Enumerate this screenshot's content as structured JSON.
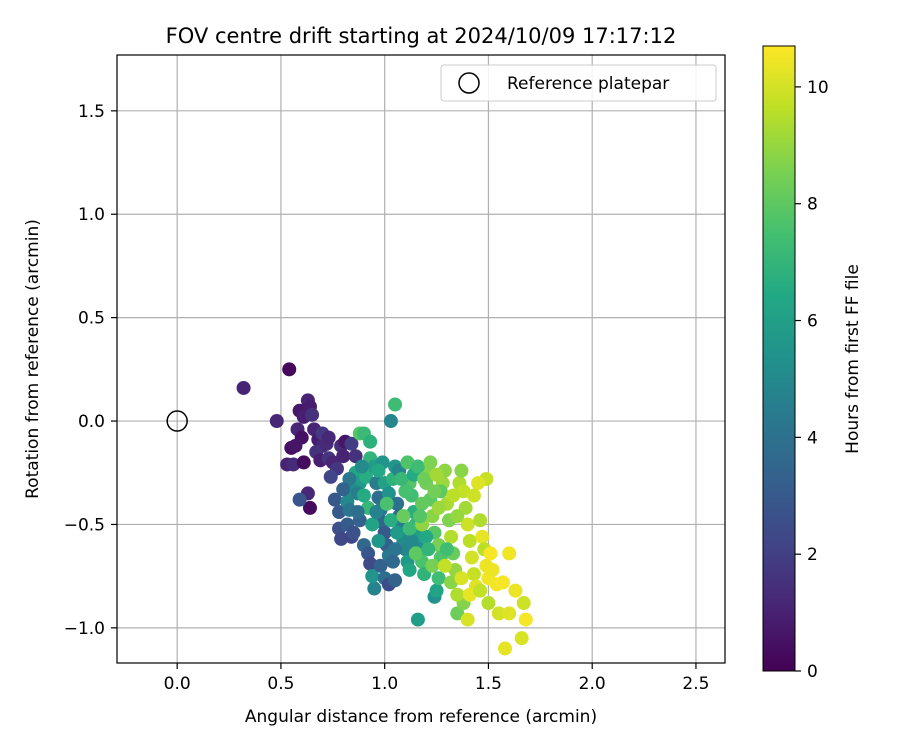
{
  "chart_data": {
    "type": "scatter",
    "title": "FOV centre drift starting at 2024/10/09 17:17:12",
    "xlabel": "Angular distance from reference (arcmin)",
    "ylabel": "Rotation from reference (arcmin)",
    "xlim": [
      -0.29,
      2.64
    ],
    "ylim": [
      -1.17,
      1.77
    ],
    "xticks": [
      0.0,
      0.5,
      1.0,
      1.5,
      2.0,
      2.5
    ],
    "xtick_labels": [
      "0.0",
      "0.5",
      "1.0",
      "1.5",
      "2.0",
      "2.5"
    ],
    "yticks": [
      -1.0,
      -0.5,
      0.0,
      0.5,
      1.0,
      1.5
    ],
    "ytick_labels": [
      "−1.0",
      "−0.5",
      "0.0",
      "0.5",
      "1.0",
      "1.5"
    ],
    "grid": true,
    "legend": {
      "placement": "top-right",
      "entries": [
        "Reference platepar"
      ]
    },
    "reference_point": {
      "label": "Reference platepar",
      "x": 0.0,
      "y": 0.0
    },
    "colorbar": {
      "label": "Hours from first FF file",
      "colormap": "viridis",
      "range": [
        0,
        10.7
      ],
      "ticks": [
        0,
        2,
        4,
        6,
        8,
        10
      ],
      "tick_labels": [
        "0",
        "2",
        "4",
        "6",
        "8",
        "10"
      ]
    },
    "series": [
      {
        "points": [
          {
            "x": 0.32,
            "y": 0.16,
            "c": 1.0
          },
          {
            "x": 0.54,
            "y": 0.25,
            "c": 0.2
          },
          {
            "x": 0.48,
            "y": 0.0,
            "c": 1.2
          },
          {
            "x": 0.59,
            "y": 0.05,
            "c": 0.7
          },
          {
            "x": 0.63,
            "y": 0.1,
            "c": 1.0
          },
          {
            "x": 0.64,
            "y": 0.07,
            "c": 0.8
          },
          {
            "x": 0.61,
            "y": 0.02,
            "c": 0.9
          },
          {
            "x": 0.58,
            "y": -0.04,
            "c": 1.1
          },
          {
            "x": 0.6,
            "y": -0.08,
            "c": 0.5
          },
          {
            "x": 0.55,
            "y": -0.13,
            "c": 0.4
          },
          {
            "x": 0.57,
            "y": -0.12,
            "c": 0.6
          },
          {
            "x": 0.53,
            "y": -0.21,
            "c": 1.0
          },
          {
            "x": 0.56,
            "y": -0.21,
            "c": 1.3
          },
          {
            "x": 0.61,
            "y": -0.2,
            "c": 0.3
          },
          {
            "x": 0.63,
            "y": -0.35,
            "c": 1.2
          },
          {
            "x": 0.64,
            "y": -0.42,
            "c": 0.3
          },
          {
            "x": 0.59,
            "y": -0.38,
            "c": 2.8
          },
          {
            "x": 0.65,
            "y": 0.03,
            "c": 1.5
          },
          {
            "x": 0.66,
            "y": -0.04,
            "c": 1.1
          },
          {
            "x": 0.68,
            "y": -0.09,
            "c": 0.8
          },
          {
            "x": 0.7,
            "y": -0.12,
            "c": 1.2
          },
          {
            "x": 0.67,
            "y": -0.15,
            "c": 1.5
          },
          {
            "x": 0.69,
            "y": -0.19,
            "c": 0.9
          },
          {
            "x": 0.72,
            "y": -0.11,
            "c": 1.3
          },
          {
            "x": 0.73,
            "y": -0.18,
            "c": 1.6
          },
          {
            "x": 0.75,
            "y": -0.2,
            "c": 1.1
          },
          {
            "x": 0.77,
            "y": -0.23,
            "c": 1.7
          },
          {
            "x": 0.74,
            "y": -0.27,
            "c": 2.2
          },
          {
            "x": 0.79,
            "y": -0.12,
            "c": 1.4
          },
          {
            "x": 0.81,
            "y": -0.1,
            "c": 0.6
          },
          {
            "x": 0.8,
            "y": -0.17,
            "c": 1.0
          },
          {
            "x": 0.84,
            "y": -0.11,
            "c": 1.9
          },
          {
            "x": 0.86,
            "y": -0.17,
            "c": 1.5
          },
          {
            "x": 0.7,
            "y": -0.06,
            "c": 1.8
          },
          {
            "x": 0.73,
            "y": -0.08,
            "c": 1.2
          },
          {
            "x": 0.76,
            "y": -0.38,
            "c": 2.9
          },
          {
            "x": 0.78,
            "y": -0.44,
            "c": 3.0
          },
          {
            "x": 0.78,
            "y": -0.52,
            "c": 2.6
          },
          {
            "x": 0.79,
            "y": -0.57,
            "c": 2.3
          },
          {
            "x": 0.82,
            "y": -0.5,
            "c": 3.1
          },
          {
            "x": 0.84,
            "y": -0.56,
            "c": 2.2
          },
          {
            "x": 0.85,
            "y": -0.54,
            "c": 2.7
          },
          {
            "x": 0.88,
            "y": -0.48,
            "c": 3.3
          },
          {
            "x": 0.9,
            "y": -0.6,
            "c": 3.6
          },
          {
            "x": 0.92,
            "y": -0.64,
            "c": 2.9
          },
          {
            "x": 0.93,
            "y": -0.69,
            "c": 2.4
          },
          {
            "x": 0.95,
            "y": -0.81,
            "c": 4.7
          },
          {
            "x": 0.94,
            "y": -0.75,
            "c": 5.5
          },
          {
            "x": 0.98,
            "y": -0.7,
            "c": 3.3
          },
          {
            "x": 1.0,
            "y": -0.76,
            "c": 3.9
          },
          {
            "x": 1.02,
            "y": -0.79,
            "c": 2.5
          },
          {
            "x": 1.05,
            "y": -0.77,
            "c": 3.4
          },
          {
            "x": 1.03,
            "y": 0.0,
            "c": 4.9
          },
          {
            "x": 1.05,
            "y": 0.08,
            "c": 7.3
          },
          {
            "x": 0.88,
            "y": -0.06,
            "c": 7.8
          },
          {
            "x": 0.9,
            "y": -0.06,
            "c": 7.2
          },
          {
            "x": 0.93,
            "y": -0.1,
            "c": 6.8
          },
          {
            "x": 0.86,
            "y": -0.25,
            "c": 6.3
          },
          {
            "x": 0.88,
            "y": -0.3,
            "c": 5.8
          },
          {
            "x": 0.85,
            "y": -0.34,
            "c": 5.2
          },
          {
            "x": 0.82,
            "y": -0.39,
            "c": 5.0
          },
          {
            "x": 0.83,
            "y": -0.43,
            "c": 4.2
          },
          {
            "x": 0.87,
            "y": -0.35,
            "c": 4.6
          },
          {
            "x": 0.91,
            "y": -0.27,
            "c": 6.6
          },
          {
            "x": 0.93,
            "y": -0.18,
            "c": 7.0
          },
          {
            "x": 0.95,
            "y": -0.22,
            "c": 5.9
          },
          {
            "x": 0.96,
            "y": -0.3,
            "c": 4.4
          },
          {
            "x": 0.97,
            "y": -0.37,
            "c": 3.8
          },
          {
            "x": 0.98,
            "y": -0.43,
            "c": 4.1
          },
          {
            "x": 0.99,
            "y": -0.49,
            "c": 3.5
          },
          {
            "x": 1.0,
            "y": -0.54,
            "c": 3.0
          },
          {
            "x": 1.01,
            "y": -0.6,
            "c": 3.2
          },
          {
            "x": 1.02,
            "y": -0.65,
            "c": 4.3
          },
          {
            "x": 1.0,
            "y": -0.3,
            "c": 6.1
          },
          {
            "x": 1.02,
            "y": -0.35,
            "c": 5.4
          },
          {
            "x": 1.04,
            "y": -0.28,
            "c": 6.9
          },
          {
            "x": 1.05,
            "y": -0.22,
            "c": 5.6
          },
          {
            "x": 1.07,
            "y": -0.24,
            "c": 4.8
          },
          {
            "x": 1.06,
            "y": -0.4,
            "c": 4.0
          },
          {
            "x": 1.07,
            "y": -0.46,
            "c": 3.7
          },
          {
            "x": 1.08,
            "y": -0.52,
            "c": 4.5
          },
          {
            "x": 1.09,
            "y": -0.58,
            "c": 5.1
          },
          {
            "x": 1.1,
            "y": -0.62,
            "c": 4.9
          },
          {
            "x": 1.11,
            "y": -0.68,
            "c": 5.7
          },
          {
            "x": 1.12,
            "y": -0.72,
            "c": 6.3
          },
          {
            "x": 1.13,
            "y": -0.36,
            "c": 7.4
          },
          {
            "x": 1.12,
            "y": -0.3,
            "c": 7.8
          },
          {
            "x": 1.14,
            "y": -0.44,
            "c": 6.7
          },
          {
            "x": 1.15,
            "y": -0.5,
            "c": 7.0
          },
          {
            "x": 1.16,
            "y": -0.56,
            "c": 6.0
          },
          {
            "x": 1.17,
            "y": -0.62,
            "c": 5.3
          },
          {
            "x": 1.16,
            "y": -0.96,
            "c": 5.9
          },
          {
            "x": 1.18,
            "y": -0.68,
            "c": 7.6
          },
          {
            "x": 1.19,
            "y": -0.74,
            "c": 6.9
          },
          {
            "x": 1.2,
            "y": -0.3,
            "c": 8.4
          },
          {
            "x": 1.21,
            "y": -0.24,
            "c": 8.7
          },
          {
            "x": 1.22,
            "y": -0.38,
            "c": 8.0
          },
          {
            "x": 1.23,
            "y": -0.46,
            "c": 8.8
          },
          {
            "x": 1.24,
            "y": -0.54,
            "c": 7.9
          },
          {
            "x": 1.24,
            "y": -0.85,
            "c": 5.4
          },
          {
            "x": 1.25,
            "y": -0.82,
            "c": 6.2
          },
          {
            "x": 1.26,
            "y": -0.6,
            "c": 8.5
          },
          {
            "x": 1.27,
            "y": -0.66,
            "c": 7.7
          },
          {
            "x": 1.28,
            "y": -0.3,
            "c": 9.1
          },
          {
            "x": 1.29,
            "y": -0.24,
            "c": 8.9
          },
          {
            "x": 1.3,
            "y": -0.4,
            "c": 9.3
          },
          {
            "x": 1.31,
            "y": -0.48,
            "c": 8.6
          },
          {
            "x": 1.32,
            "y": -0.56,
            "c": 9.5
          },
          {
            "x": 1.33,
            "y": -0.64,
            "c": 8.2
          },
          {
            "x": 1.34,
            "y": -0.72,
            "c": 9.0
          },
          {
            "x": 1.35,
            "y": -0.93,
            "c": 8.3
          },
          {
            "x": 1.36,
            "y": -0.3,
            "c": 9.4
          },
          {
            "x": 1.37,
            "y": -0.24,
            "c": 8.8
          },
          {
            "x": 1.38,
            "y": -0.34,
            "c": 9.7
          },
          {
            "x": 1.39,
            "y": -0.42,
            "c": 9.2
          },
          {
            "x": 1.4,
            "y": -0.5,
            "c": 9.9
          },
          {
            "x": 1.41,
            "y": -0.58,
            "c": 9.6
          },
          {
            "x": 1.42,
            "y": -0.66,
            "c": 10.0
          },
          {
            "x": 1.43,
            "y": -0.74,
            "c": 9.8
          },
          {
            "x": 1.44,
            "y": -0.8,
            "c": 10.2
          },
          {
            "x": 1.38,
            "y": -0.88,
            "c": 8.7
          },
          {
            "x": 1.4,
            "y": -0.96,
            "c": 10.1
          },
          {
            "x": 1.46,
            "y": -0.48,
            "c": 9.4
          },
          {
            "x": 1.47,
            "y": -0.56,
            "c": 10.3
          },
          {
            "x": 1.48,
            "y": -0.62,
            "c": 9.6
          },
          {
            "x": 1.49,
            "y": -0.7,
            "c": 10.4
          },
          {
            "x": 1.5,
            "y": -0.76,
            "c": 10.5
          },
          {
            "x": 1.49,
            "y": -0.28,
            "c": 9.8
          },
          {
            "x": 1.5,
            "y": -0.88,
            "c": 9.5
          },
          {
            "x": 1.51,
            "y": -0.64,
            "c": 10.6
          },
          {
            "x": 1.52,
            "y": -0.72,
            "c": 10.4
          },
          {
            "x": 1.54,
            "y": -0.79,
            "c": 10.5
          },
          {
            "x": 1.55,
            "y": -0.93,
            "c": 10.0
          },
          {
            "x": 1.57,
            "y": -0.78,
            "c": 10.6
          },
          {
            "x": 1.58,
            "y": -1.1,
            "c": 10.3
          },
          {
            "x": 1.6,
            "y": -0.64,
            "c": 10.5
          },
          {
            "x": 1.6,
            "y": -0.93,
            "c": 10.2
          },
          {
            "x": 1.63,
            "y": -0.82,
            "c": 10.4
          },
          {
            "x": 1.66,
            "y": -1.05,
            "c": 10.1
          },
          {
            "x": 1.67,
            "y": -0.88,
            "c": 9.9
          },
          {
            "x": 1.68,
            "y": -0.96,
            "c": 10.6
          },
          {
            "x": 1.45,
            "y": -0.3,
            "c": 10.2
          },
          {
            "x": 1.43,
            "y": -0.36,
            "c": 9.9
          },
          {
            "x": 1.35,
            "y": -0.46,
            "c": 9.0
          },
          {
            "x": 1.26,
            "y": -0.42,
            "c": 9.1
          },
          {
            "x": 1.18,
            "y": -0.4,
            "c": 8.1
          },
          {
            "x": 1.1,
            "y": -0.34,
            "c": 7.5
          },
          {
            "x": 1.08,
            "y": -0.28,
            "c": 7.1
          },
          {
            "x": 1.11,
            "y": -0.2,
            "c": 7.7
          },
          {
            "x": 1.14,
            "y": -0.26,
            "c": 6.5
          },
          {
            "x": 1.16,
            "y": -0.22,
            "c": 7.3
          },
          {
            "x": 1.19,
            "y": -0.28,
            "c": 8.3
          },
          {
            "x": 1.22,
            "y": -0.2,
            "c": 8.6
          },
          {
            "x": 1.25,
            "y": -0.26,
            "c": 9.2
          },
          {
            "x": 1.27,
            "y": -0.34,
            "c": 8.0
          },
          {
            "x": 1.3,
            "y": -0.62,
            "c": 7.4
          },
          {
            "x": 1.2,
            "y": -0.56,
            "c": 6.4
          },
          {
            "x": 1.13,
            "y": -0.58,
            "c": 5.0
          },
          {
            "x": 1.05,
            "y": -0.62,
            "c": 4.2
          },
          {
            "x": 1.04,
            "y": -0.68,
            "c": 3.6
          },
          {
            "x": 0.97,
            "y": -0.58,
            "c": 5.6
          },
          {
            "x": 0.94,
            "y": -0.5,
            "c": 6.2
          },
          {
            "x": 0.92,
            "y": -0.42,
            "c": 7.1
          },
          {
            "x": 0.9,
            "y": -0.36,
            "c": 6.5
          },
          {
            "x": 0.96,
            "y": -0.44,
            "c": 4.7
          },
          {
            "x": 1.01,
            "y": -0.4,
            "c": 7.6
          },
          {
            "x": 1.03,
            "y": -0.48,
            "c": 6.6
          },
          {
            "x": 1.06,
            "y": -0.54,
            "c": 5.8
          },
          {
            "x": 1.09,
            "y": -0.46,
            "c": 8.2
          },
          {
            "x": 1.12,
            "y": -0.52,
            "c": 7.2
          },
          {
            "x": 1.15,
            "y": -0.64,
            "c": 8.0
          },
          {
            "x": 1.18,
            "y": -0.5,
            "c": 8.9
          },
          {
            "x": 1.21,
            "y": -0.62,
            "c": 7.0
          },
          {
            "x": 1.23,
            "y": -0.7,
            "c": 8.5
          },
          {
            "x": 1.26,
            "y": -0.76,
            "c": 7.3
          },
          {
            "x": 1.29,
            "y": -0.7,
            "c": 9.7
          },
          {
            "x": 1.32,
            "y": -0.78,
            "c": 8.8
          },
          {
            "x": 1.35,
            "y": -0.84,
            "c": 9.4
          },
          {
            "x": 1.37,
            "y": -0.76,
            "c": 10.1
          },
          {
            "x": 1.41,
            "y": -0.84,
            "c": 10.3
          },
          {
            "x": 1.46,
            "y": -0.82,
            "c": 9.7
          },
          {
            "x": 1.33,
            "y": -0.36,
            "c": 9.6
          },
          {
            "x": 1.24,
            "y": -0.34,
            "c": 8.4
          },
          {
            "x": 1.17,
            "y": -0.46,
            "c": 7.8
          },
          {
            "x": 0.99,
            "y": -0.2,
            "c": 5.5
          },
          {
            "x": 0.97,
            "y": -0.24,
            "c": 6.4
          },
          {
            "x": 0.89,
            "y": -0.22,
            "c": 5.1
          },
          {
            "x": 0.87,
            "y": -0.44,
            "c": 3.9
          },
          {
            "x": 0.83,
            "y": -0.28,
            "c": 4.3
          },
          {
            "x": 0.8,
            "y": -0.33,
            "c": 3.4
          }
        ]
      }
    ]
  }
}
